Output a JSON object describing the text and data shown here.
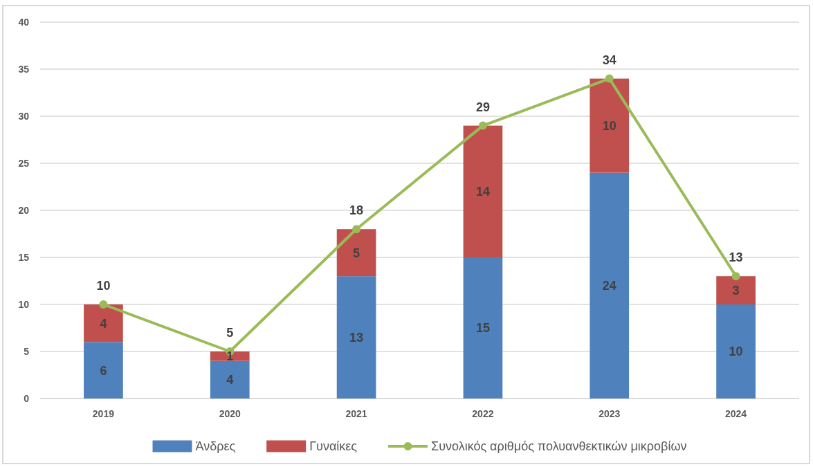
{
  "chart_data": {
    "type": "bar",
    "stacked": true,
    "categories": [
      "2019",
      "2020",
      "2021",
      "2022",
      "2023",
      "2024"
    ],
    "series": [
      {
        "name": "Άνδρες",
        "color": "#4f81bd",
        "values": [
          6,
          4,
          13,
          15,
          24,
          10
        ]
      },
      {
        "name": "Γυναίκες",
        "color": "#c0504d",
        "values": [
          4,
          1,
          5,
          14,
          10,
          3
        ]
      },
      {
        "name": "Συνολικός αριθμός πολυανθεκτικών μικροβίων",
        "type": "line",
        "color": "#9bbb59",
        "values": [
          10,
          5,
          18,
          29,
          34,
          13
        ]
      }
    ],
    "ylim": [
      0,
      40
    ],
    "yticks": [
      0,
      5,
      10,
      15,
      20,
      25,
      30,
      35,
      40
    ],
    "grid": "y",
    "legend": "bottom",
    "marker": "circle",
    "line_style": "solid",
    "data_labels": true
  }
}
